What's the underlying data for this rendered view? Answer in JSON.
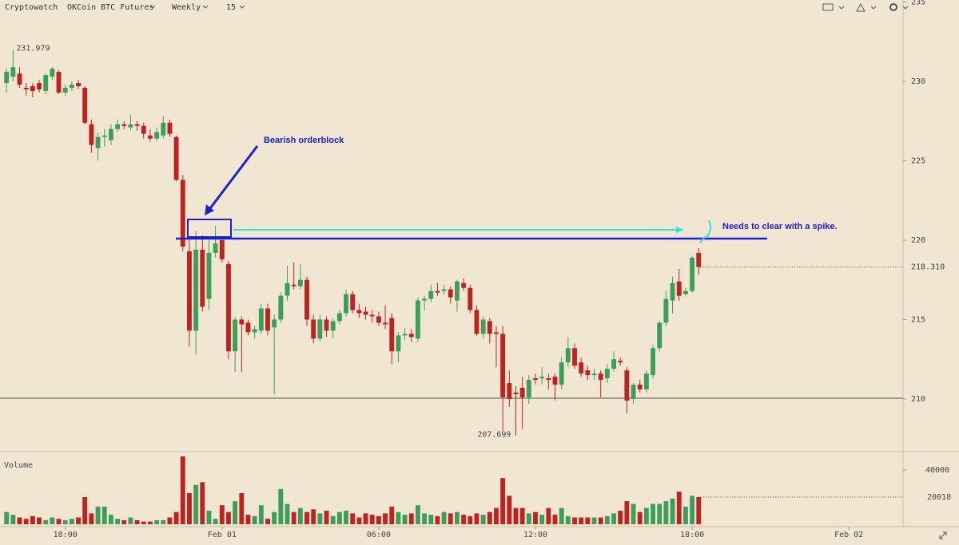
{
  "toolbar": {
    "site": "Cryptowatch",
    "market": "OKCoin BTC Futures",
    "period": "Weekly",
    "interval": "15"
  },
  "chart_data": {
    "type": "candlestick",
    "up_color": "#3d9e5c",
    "down_color": "#c0231f",
    "annotations": {
      "orderblock": "Bearish orderblock",
      "spike": "Needs to clear with a spike."
    },
    "volume_label": "Volume",
    "xticks": [
      {
        "value": 9,
        "label": "18:00"
      },
      {
        "value": 33,
        "label": "Feb 01"
      },
      {
        "value": 57,
        "label": "06:00"
      },
      {
        "value": 81,
        "label": "12:00"
      },
      {
        "value": 105,
        "label": "18:00"
      },
      {
        "value": 129,
        "label": "Feb 02"
      }
    ],
    "xlim": [
      -1,
      137.3
    ],
    "ylim": [
      206.73,
      235.13
    ],
    "yticks": [
      210,
      215,
      220,
      225,
      230,
      235
    ],
    "vlim": [
      0,
      52350
    ],
    "vticks": [
      40000
    ],
    "last_price": {
      "value": 218.31,
      "label": "218.310"
    },
    "ohlc": [
      [
        229.9,
        230.8,
        229.3,
        230.6
      ],
      [
        230.3,
        231.979,
        230.0,
        230.9
      ],
      [
        230.5,
        230.9,
        229.6,
        229.8
      ],
      [
        229.6,
        229.9,
        229.1,
        229.5
      ],
      [
        229.7,
        229.9,
        229.0,
        229.4
      ],
      [
        229.9,
        230.1,
        229.3,
        229.5
      ],
      [
        229.4,
        230.5,
        229.2,
        230.4
      ],
      [
        230.3,
        230.9,
        230.1,
        230.8
      ],
      [
        230.6,
        230.7,
        229.2,
        229.3
      ],
      [
        229.3,
        229.8,
        229.1,
        229.6
      ],
      [
        229.6,
        230.0,
        229.4,
        229.8
      ],
      [
        229.9,
        230.1,
        229.5,
        229.7
      ],
      [
        229.6,
        229.7,
        227.3,
        227.4
      ],
      [
        227.3,
        227.6,
        225.5,
        226.0
      ],
      [
        225.8,
        226.8,
        225.0,
        226.5
      ],
      [
        226.5,
        227.0,
        225.9,
        226.6
      ],
      [
        226.3,
        227.3,
        226.0,
        227.0
      ],
      [
        227.0,
        227.6,
        226.8,
        227.3
      ],
      [
        227.3,
        227.5,
        227.0,
        227.2
      ],
      [
        227.1,
        227.9,
        226.9,
        227.3
      ],
      [
        227.3,
        227.5,
        226.9,
        227.2
      ],
      [
        227.2,
        227.4,
        226.4,
        226.7
      ],
      [
        226.6,
        227.0,
        226.2,
        226.4
      ],
      [
        226.4,
        227.1,
        226.2,
        226.8
      ],
      [
        226.6,
        227.8,
        226.4,
        227.4
      ],
      [
        227.4,
        227.6,
        226.5,
        226.7
      ],
      [
        226.5,
        226.6,
        223.7,
        223.8
      ],
      [
        223.8,
        224.1,
        219.3,
        219.6
      ],
      [
        219.3,
        220.2,
        213.3,
        214.3
      ],
      [
        214.3,
        220.6,
        212.8,
        219.4
      ],
      [
        219.4,
        220.3,
        215.5,
        215.8
      ],
      [
        216.3,
        220.0,
        215.6,
        219.2
      ],
      [
        219.2,
        220.9,
        218.9,
        219.8
      ],
      [
        220.0,
        220.2,
        218.6,
        218.8
      ],
      [
        218.5,
        218.7,
        212.5,
        213.0
      ],
      [
        213.0,
        215.2,
        211.7,
        215.0
      ],
      [
        215.0,
        215.2,
        211.7,
        214.7
      ],
      [
        214.8,
        215.0,
        214.0,
        214.2
      ],
      [
        214.2,
        214.6,
        213.8,
        214.4
      ],
      [
        214.3,
        216.0,
        214.1,
        215.7
      ],
      [
        215.7,
        216.0,
        214.0,
        214.3
      ],
      [
        214.5,
        215.3,
        210.3,
        215.0
      ],
      [
        215.0,
        216.7,
        214.8,
        216.5
      ],
      [
        216.5,
        218.4,
        216.2,
        217.3
      ],
      [
        217.2,
        218.6,
        216.9,
        217.1
      ],
      [
        217.1,
        218.5,
        216.9,
        217.5
      ],
      [
        217.5,
        217.7,
        214.6,
        215.0
      ],
      [
        215.0,
        215.3,
        213.5,
        213.8
      ],
      [
        213.8,
        215.3,
        213.6,
        215.0
      ],
      [
        215.0,
        215.2,
        213.9,
        214.3
      ],
      [
        214.3,
        215.1,
        213.8,
        214.9
      ],
      [
        214.9,
        215.6,
        214.7,
        215.4
      ],
      [
        215.4,
        216.9,
        215.2,
        216.6
      ],
      [
        216.6,
        216.8,
        215.4,
        215.6
      ],
      [
        215.6,
        216.0,
        215.1,
        215.4
      ],
      [
        215.5,
        215.8,
        215.0,
        215.3
      ],
      [
        215.3,
        215.6,
        214.8,
        215.2
      ],
      [
        215.2,
        215.5,
        214.6,
        214.8
      ],
      [
        214.8,
        215.9,
        214.4,
        214.7
      ],
      [
        215.1,
        215.4,
        212.2,
        213.0
      ],
      [
        213.0,
        214.2,
        212.3,
        214.0
      ],
      [
        214.0,
        214.5,
        213.7,
        214.1
      ],
      [
        214.1,
        214.4,
        213.6,
        213.9
      ],
      [
        213.8,
        216.4,
        213.6,
        216.2
      ],
      [
        216.2,
        216.5,
        215.6,
        216.3
      ],
      [
        216.3,
        217.2,
        216.1,
        216.8
      ],
      [
        216.8,
        217.3,
        216.5,
        216.7
      ],
      [
        216.8,
        217.2,
        216.6,
        216.9
      ],
      [
        216.9,
        217.1,
        216.0,
        216.4
      ],
      [
        216.2,
        217.5,
        215.5,
        217.4
      ],
      [
        217.3,
        217.6,
        216.8,
        217.0
      ],
      [
        217.0,
        217.2,
        215.4,
        215.6
      ],
      [
        215.6,
        215.9,
        214.0,
        214.1
      ],
      [
        214.1,
        215.2,
        213.8,
        215.0
      ],
      [
        214.9,
        215.1,
        213.5,
        214.1
      ],
      [
        214.2,
        214.6,
        212.0,
        214.1
      ],
      [
        214.1,
        214.6,
        208.0,
        210.1
      ],
      [
        211.0,
        211.8,
        209.5,
        210.0
      ],
      [
        210.4,
        210.8,
        207.699,
        210.3
      ],
      [
        210.7,
        211.4,
        208.1,
        210.1
      ],
      [
        210.1,
        211.5,
        209.7,
        211.2
      ],
      [
        211.3,
        211.6,
        210.9,
        211.2
      ],
      [
        211.3,
        212.0,
        210.9,
        211.4
      ],
      [
        211.3,
        211.6,
        210.6,
        211.2
      ],
      [
        211.4,
        211.6,
        209.9,
        210.9
      ],
      [
        210.9,
        212.6,
        210.6,
        212.3
      ],
      [
        212.3,
        213.9,
        212.0,
        213.2
      ],
      [
        213.2,
        213.5,
        211.9,
        212.1
      ],
      [
        212.3,
        212.6,
        211.4,
        211.6
      ],
      [
        211.8,
        212.1,
        211.2,
        211.5
      ],
      [
        211.5,
        211.9,
        211.2,
        211.6
      ],
      [
        211.6,
        211.8,
        210.1,
        211.2
      ],
      [
        211.3,
        212.2,
        211.0,
        211.9
      ],
      [
        211.9,
        213.0,
        211.7,
        212.5
      ],
      [
        212.4,
        212.6,
        212.1,
        212.3
      ],
      [
        211.8,
        212.0,
        209.1,
        209.9
      ],
      [
        210.0,
        211.0,
        209.7,
        210.9
      ],
      [
        210.9,
        211.2,
        210.4,
        210.6
      ],
      [
        210.6,
        211.8,
        210.4,
        211.6
      ],
      [
        211.5,
        213.4,
        211.3,
        213.2
      ],
      [
        213.2,
        214.9,
        213.0,
        214.8
      ],
      [
        214.8,
        216.8,
        214.6,
        216.3
      ],
      [
        216.2,
        217.7,
        215.4,
        217.3
      ],
      [
        217.4,
        218.2,
        216.2,
        216.5
      ],
      [
        216.6,
        217.0,
        216.5,
        216.8
      ],
      [
        216.8,
        219.0,
        216.7,
        218.9
      ],
      [
        219.2,
        219.5,
        217.8,
        218.31
      ]
    ],
    "volume": [
      9000,
      7000,
      5000,
      4000,
      6000,
      5000,
      3000,
      5000,
      4000,
      3000,
      4000,
      5000,
      20000,
      8000,
      13000,
      13000,
      7000,
      4000,
      3000,
      5000,
      3000,
      2000,
      2000,
      3000,
      3000,
      5000,
      9000,
      50000,
      23000,
      29000,
      31000,
      10000,
      4000,
      14000,
      9000,
      17000,
      23000,
      7000,
      6000,
      14000,
      4000,
      9000,
      26000,
      15000,
      9000,
      12000,
      9000,
      11000,
      8000,
      10000,
      6000,
      9000,
      10000,
      8000,
      5000,
      8000,
      7000,
      6000,
      8000,
      13000,
      9000,
      7000,
      8000,
      14000,
      8000,
      7000,
      6000,
      9000,
      8000,
      9000,
      7000,
      6000,
      8000,
      7000,
      9000,
      12000,
      34000,
      21000,
      12000,
      12000,
      8000,
      9000,
      7000,
      12000,
      7000,
      12000,
      6000,
      5000,
      5000,
      5000,
      5000,
      5000,
      6000,
      8000,
      10000,
      17000,
      15000,
      9000,
      12000,
      15000,
      15000,
      17000,
      19000,
      24000,
      13000,
      21000,
      20018
    ]
  }
}
